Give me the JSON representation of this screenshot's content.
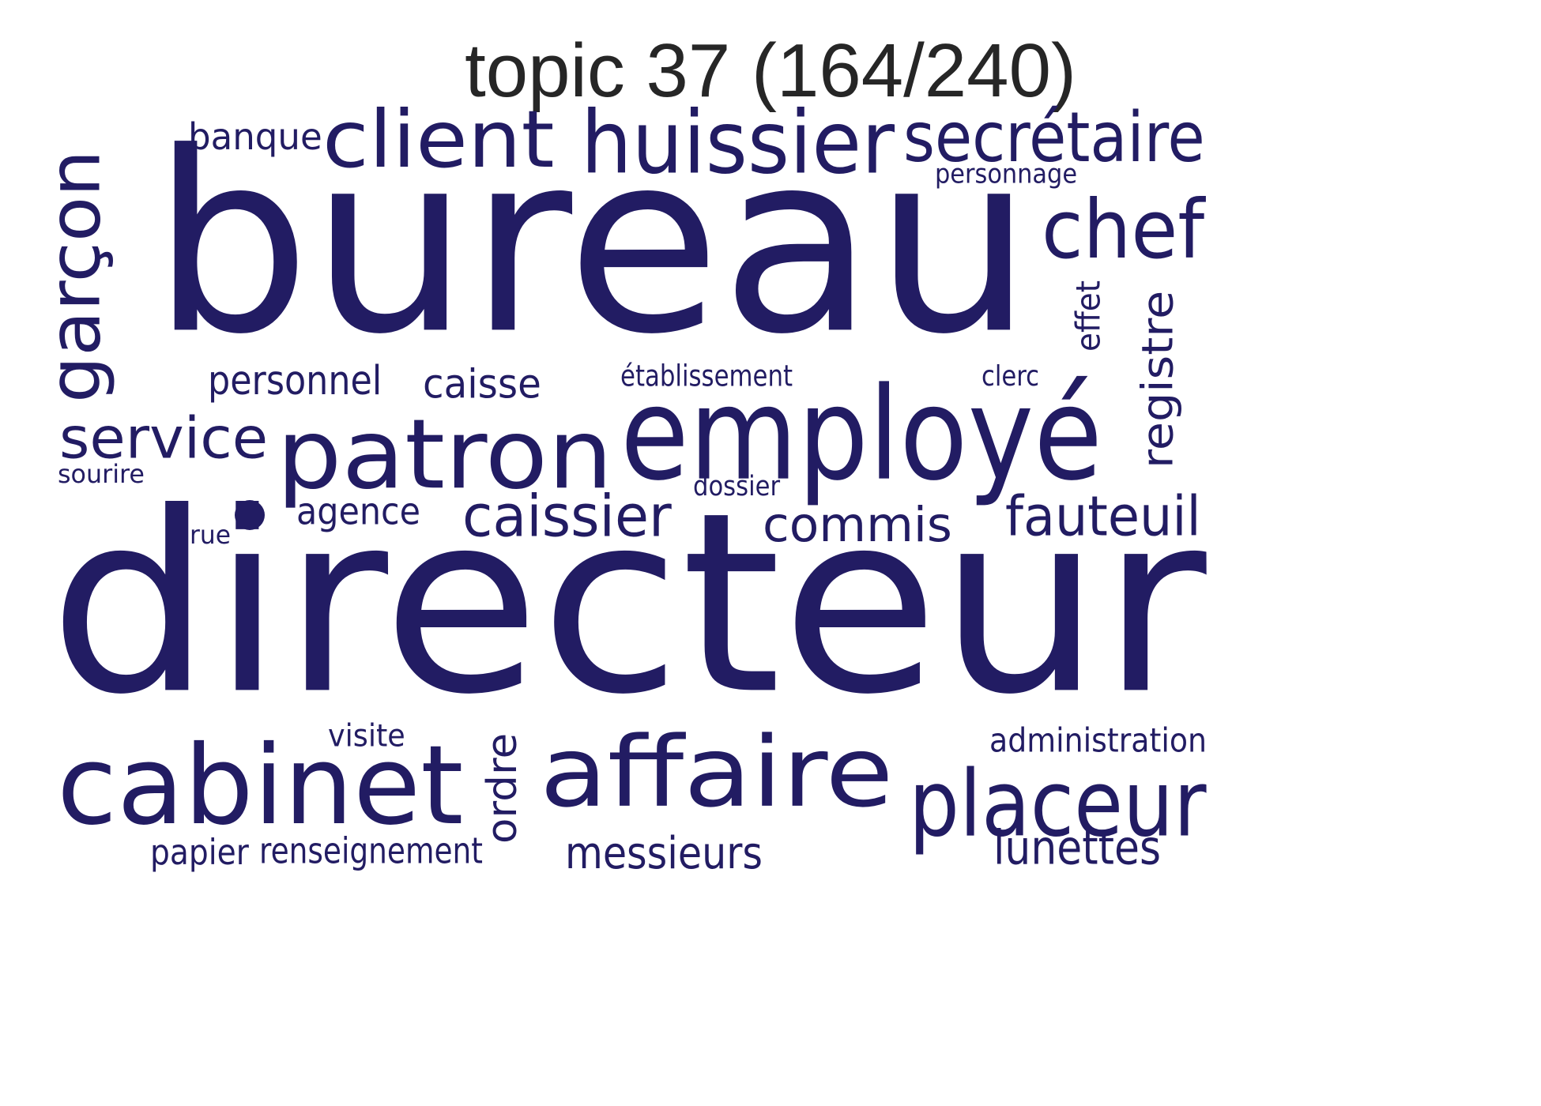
{
  "title": "topic 37 (164/240)",
  "style": {
    "word_color": "#221c63",
    "title_color": "#262626",
    "background": "#ffffff"
  },
  "words": [
    {
      "text": "directeur"
    },
    {
      "text": "bureau"
    },
    {
      "text": "employé"
    },
    {
      "text": "patron"
    },
    {
      "text": "affaire"
    },
    {
      "text": "cabinet"
    },
    {
      "text": "huissier"
    },
    {
      "text": "client"
    },
    {
      "text": "placeur"
    },
    {
      "text": "secrétaire"
    },
    {
      "text": "chef"
    },
    {
      "text": "garçon"
    },
    {
      "text": "service"
    },
    {
      "text": "caissier"
    },
    {
      "text": "fauteuil"
    },
    {
      "text": "commis"
    },
    {
      "text": "registre"
    },
    {
      "text": "messieurs"
    },
    {
      "text": "lunettes"
    },
    {
      "text": "caisse"
    },
    {
      "text": "personnel"
    },
    {
      "text": "agence"
    },
    {
      "text": "ordre"
    },
    {
      "text": "banque"
    },
    {
      "text": "administration"
    },
    {
      "text": "visite"
    },
    {
      "text": "papier"
    },
    {
      "text": "renseignement"
    },
    {
      "text": "établissement"
    },
    {
      "text": "effet"
    },
    {
      "text": "dossier"
    },
    {
      "text": "clerc"
    },
    {
      "text": "personnage"
    },
    {
      "text": "sourire"
    },
    {
      "text": "rue"
    }
  ]
}
